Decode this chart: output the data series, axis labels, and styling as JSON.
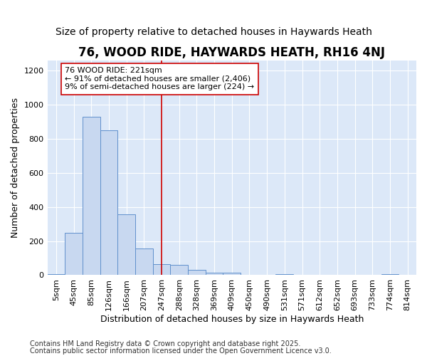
{
  "title": "76, WOOD RIDE, HAYWARDS HEATH, RH16 4NJ",
  "subtitle": "Size of property relative to detached houses in Haywards Heath",
  "xlabel": "Distribution of detached houses by size in Haywards Heath",
  "ylabel": "Number of detached properties",
  "categories": [
    "5sqm",
    "45sqm",
    "85sqm",
    "126sqm",
    "166sqm",
    "207sqm",
    "247sqm",
    "288sqm",
    "328sqm",
    "369sqm",
    "409sqm",
    "450sqm",
    "490sqm",
    "531sqm",
    "571sqm",
    "612sqm",
    "652sqm",
    "693sqm",
    "733sqm",
    "774sqm",
    "814sqm"
  ],
  "values": [
    8,
    248,
    930,
    848,
    358,
    158,
    63,
    62,
    30,
    14,
    13,
    0,
    0,
    8,
    0,
    0,
    0,
    0,
    0,
    8,
    0
  ],
  "bar_color": "#c8d8f0",
  "bar_edge_color": "#6090cc",
  "fig_bg_color": "#ffffff",
  "plot_bg_color": "#dce8f8",
  "grid_color": "#ffffff",
  "ylim": [
    0,
    1260
  ],
  "yticks": [
    0,
    200,
    400,
    600,
    800,
    1000,
    1200
  ],
  "vline_x_index": 6.0,
  "vline_color": "#cc0000",
  "annotation_text": "76 WOOD RIDE: 221sqm\n← 91% of detached houses are smaller (2,406)\n9% of semi-detached houses are larger (224) →",
  "annotation_box_color": "#ffffff",
  "annotation_box_edge": "#cc0000",
  "footer1": "Contains HM Land Registry data © Crown copyright and database right 2025.",
  "footer2": "Contains public sector information licensed under the Open Government Licence v3.0.",
  "title_fontsize": 12,
  "subtitle_fontsize": 10,
  "label_fontsize": 9,
  "tick_fontsize": 8,
  "annotation_fontsize": 8,
  "footer_fontsize": 7
}
